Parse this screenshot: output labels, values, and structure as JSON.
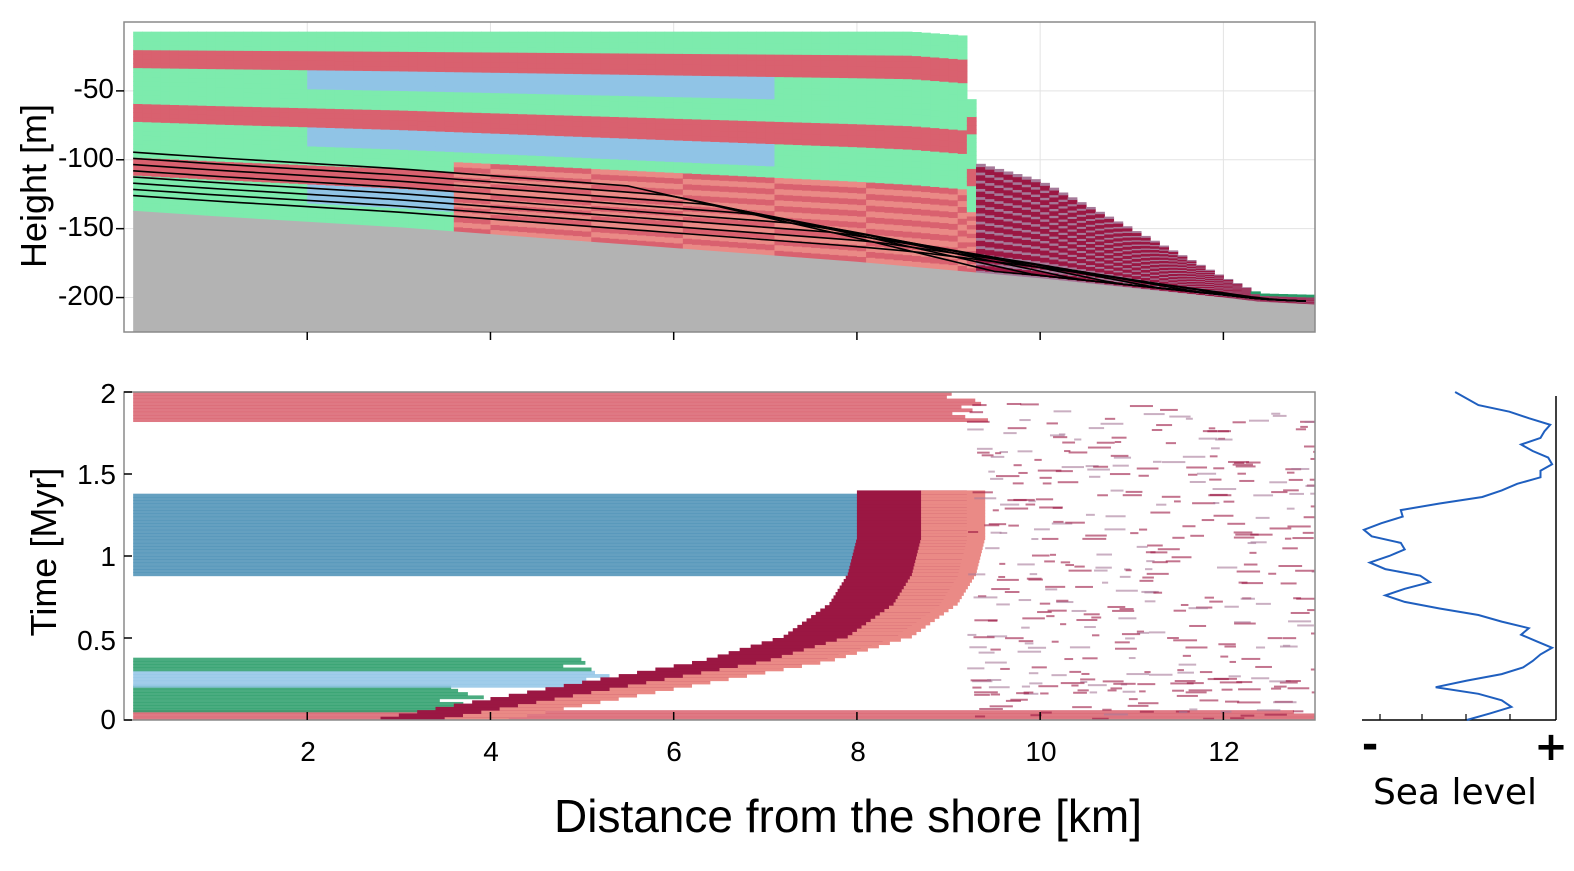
{
  "chart_data": [
    {
      "type": "area",
      "panel": "top",
      "ylabel": "Height [m]",
      "xlim": [
        0,
        13
      ],
      "ylim": [
        -225,
        0
      ],
      "yticks": [
        -50,
        -100,
        -150,
        -200
      ],
      "ytick_labels": [
        "-50",
        "-100",
        "-150",
        "-200"
      ],
      "xticks": [
        2,
        4,
        6,
        8,
        10,
        12
      ],
      "grid": true,
      "basement_color": "#b3b3b3",
      "facies_colors": [
        "#7debad",
        "#90c4e6",
        "#d9616f",
        "#ea8a86",
        "#9b1743",
        "#a67a99",
        "#2a9d6a"
      ],
      "basement_profile": {
        "x": [
          0.1,
          1,
          2,
          3,
          4,
          5,
          6,
          7,
          8,
          9,
          10,
          11,
          12,
          12.4,
          13
        ],
        "y": [
          -137,
          -141,
          -145,
          -149,
          -154,
          -159,
          -164,
          -169,
          -174,
          -180,
          -186,
          -193,
          -200,
          -203,
          -205
        ]
      },
      "deposit_top_profile": {
        "x": [
          0.1,
          3.5,
          6.5,
          8.6,
          9.2,
          9.3,
          10,
          11,
          12,
          12.4,
          13
        ],
        "y": [
          -7,
          -7,
          -7,
          -7,
          -10,
          -102,
          -115,
          -150,
          -185,
          -197,
          -198
        ]
      }
    },
    {
      "type": "heatmap",
      "panel": "bottom",
      "xlabel": "Distance from the shore [km]",
      "ylabel": "Time [Myr]",
      "xlim": [
        0,
        13
      ],
      "ylim": [
        0,
        2
      ],
      "xticks": [
        2,
        4,
        6,
        8,
        10,
        12
      ],
      "xtick_labels": [
        "2",
        "4",
        "6",
        "8",
        "10",
        "12"
      ],
      "yticks": [
        0,
        0.5,
        1,
        1.5,
        2
      ],
      "ytick_labels": [
        "0",
        "0.5",
        "1",
        "1.5",
        "2"
      ],
      "deposition_bands": [
        {
          "t0": 0.0,
          "t1": 0.05,
          "x_end": 13,
          "color": "#d9616f"
        },
        {
          "t0": 0.05,
          "t1": 0.2,
          "x_end": 3.7,
          "color": "#2a9d6a"
        },
        {
          "t0": 0.2,
          "t1": 0.3,
          "x_end": 5.3,
          "color": "#90c4e6"
        },
        {
          "t0": 0.3,
          "t1": 0.37,
          "x_end": 5.0,
          "color": "#2a9d6a"
        },
        {
          "t0": 0.88,
          "t1": 1.38,
          "x_end": 8.5,
          "color": "#4a8fb5"
        },
        {
          "t0": 1.82,
          "t1": 2.0,
          "x_end": 9.2,
          "color": "#d9616f"
        }
      ],
      "shoreline_front": {
        "t": [
          0.0,
          0.2,
          0.35,
          0.5,
          0.7,
          0.88,
          1.1,
          1.38
        ],
        "x": [
          4,
          6,
          7.5,
          8.4,
          8.9,
          9.1,
          9.2,
          9.2
        ]
      }
    },
    {
      "type": "line",
      "panel": "right",
      "xlabel": "Sea level",
      "xtick_labels": [
        "-",
        "+"
      ],
      "line_color": "#1f5fbf",
      "series": [
        {
          "x_relative": [
            0.54,
            0.66,
            0.77,
            0.72,
            0.6,
            0.38,
            0.54,
            0.72,
            0.83,
            0.88,
            0.92,
            0.98,
            0.9,
            0.82,
            0.86,
            0.72,
            0.6,
            0.4,
            0.22,
            0.12,
            0.22,
            0.35,
            0.3,
            0.12,
            0.04,
            0.14,
            0.22,
            0.2,
            0.05,
            0.01,
            0.1,
            0.21,
            0.2,
            0.4,
            0.62,
            0.72,
            0.8,
            0.92,
            0.92,
            0.98,
            0.96,
            0.88,
            0.82,
            0.92,
            0.94,
            0.97,
            0.86,
            0.76,
            0.6,
            0.48
          ],
          "t": [
            0.0,
            0.04,
            0.08,
            0.12,
            0.16,
            0.2,
            0.24,
            0.28,
            0.32,
            0.36,
            0.4,
            0.44,
            0.48,
            0.52,
            0.56,
            0.6,
            0.64,
            0.68,
            0.72,
            0.76,
            0.8,
            0.84,
            0.88,
            0.92,
            0.96,
            1.0,
            1.04,
            1.08,
            1.12,
            1.16,
            1.2,
            1.24,
            1.28,
            1.32,
            1.36,
            1.4,
            1.44,
            1.48,
            1.52,
            1.56,
            1.6,
            1.64,
            1.68,
            1.72,
            1.76,
            1.8,
            1.84,
            1.88,
            1.92,
            2.0
          ]
        }
      ]
    }
  ]
}
